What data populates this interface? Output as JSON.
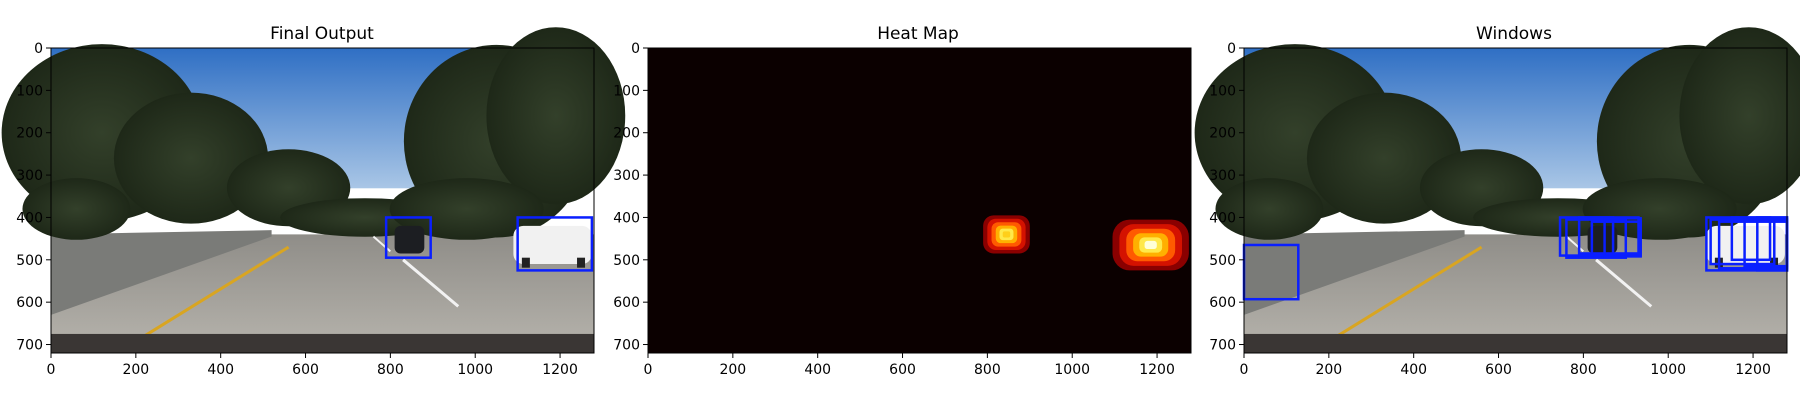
{
  "panels": [
    {
      "name": "final-output-panel",
      "title": "Final Output",
      "kind": "photo-road",
      "boxes": [
        {
          "x0": 790,
          "y0": 400,
          "x1": 895,
          "y1": 495
        },
        {
          "x0": 1100,
          "y0": 400,
          "x1": 1275,
          "y1": 525
        }
      ]
    },
    {
      "name": "heat-map-panel",
      "title": "Heat Map",
      "kind": "heatmap",
      "blobs": [
        {
          "cx": 845,
          "cy": 440,
          "rx": 55,
          "ry": 45,
          "peak": 0.55
        },
        {
          "cx": 1185,
          "cy": 465,
          "rx": 90,
          "ry": 60,
          "peak": 1.0
        }
      ]
    },
    {
      "name": "windows-panel",
      "title": "Windows",
      "kind": "photo-road",
      "boxes": [
        {
          "x0": 0,
          "y0": 465,
          "x1": 128,
          "y1": 593
        },
        {
          "x0": 745,
          "y0": 400,
          "x1": 870,
          "y1": 490
        },
        {
          "x0": 760,
          "y0": 405,
          "x1": 900,
          "y1": 495
        },
        {
          "x0": 790,
          "y0": 400,
          "x1": 930,
          "y1": 485
        },
        {
          "x0": 820,
          "y0": 410,
          "x1": 935,
          "y1": 490
        },
        {
          "x0": 850,
          "y0": 402,
          "x1": 935,
          "y1": 492
        },
        {
          "x0": 1090,
          "y0": 400,
          "x1": 1280,
          "y1": 525
        },
        {
          "x0": 1100,
          "y0": 405,
          "x1": 1250,
          "y1": 510
        },
        {
          "x0": 1120,
          "y0": 410,
          "x1": 1280,
          "y1": 520
        },
        {
          "x0": 1150,
          "y0": 400,
          "x1": 1240,
          "y1": 500
        },
        {
          "x0": 1180,
          "y0": 405,
          "x1": 1280,
          "y1": 515
        },
        {
          "x0": 1210,
          "y0": 400,
          "x1": 1280,
          "y1": 525
        }
      ]
    }
  ],
  "axes": {
    "xlim": [
      0,
      1280
    ],
    "ylim": [
      720,
      0
    ],
    "xticks": [
      0,
      200,
      400,
      600,
      800,
      1000,
      1200
    ],
    "yticks": [
      0,
      100,
      200,
      300,
      400,
      500,
      600,
      700
    ]
  },
  "colors": {
    "box": "#0a1fff",
    "heat_background": "#0b0000",
    "sky": "#4e8fd6",
    "road": "#9e9b94"
  }
}
